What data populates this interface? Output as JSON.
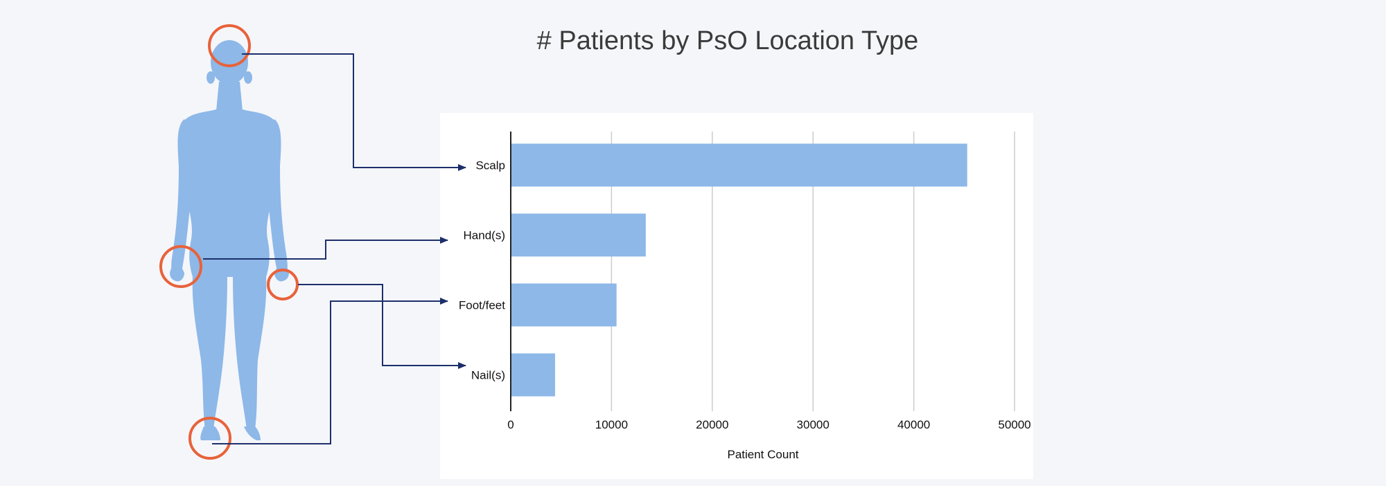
{
  "title": "# Patients by PsO Location Type",
  "colors": {
    "background": "#f5f6fa",
    "bar": "#8db8e8",
    "figure": "#8db8e8",
    "highlight_circle": "#e8623a",
    "connector": "#1c2f6b",
    "gridline": "#cccccc"
  },
  "chart_data": {
    "type": "bar",
    "orientation": "horizontal",
    "categories": [
      "Scalp",
      "Hand(s)",
      "Foot/feet",
      "Nail(s)"
    ],
    "values": [
      45300,
      13400,
      10500,
      4400
    ],
    "xlabel": "Patient Count",
    "ylabel": "",
    "xlim": [
      0,
      50000
    ],
    "xticks": [
      "0",
      "10000",
      "20000",
      "30000",
      "40000",
      "50000"
    ],
    "grid": true
  },
  "figure": {
    "icon": "human-silhouette-icon",
    "highlighted_locations": [
      "head",
      "hand",
      "hand",
      "foot"
    ]
  }
}
